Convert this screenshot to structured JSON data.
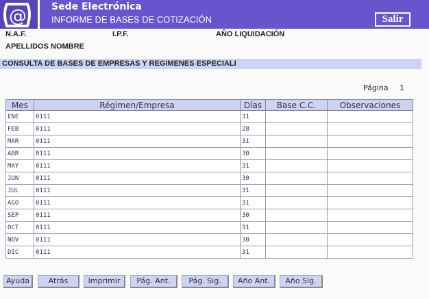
{
  "header": {
    "title": "Sede Electrónica",
    "subtitle": "INFORME DE BASES DE COTIZACIÓN",
    "exit_label": "Salir",
    "logo_icon": "at-sign-logo"
  },
  "fields": {
    "naf": "N.A.F.",
    "ipf": "I.P.F.",
    "year": "AÑO LIQUIDACIÓN",
    "name": "APELLIDOS NOMBRE"
  },
  "section_title": "CONSULTA DE BASES DE EMPRESAS Y REGIMENES ESPECIALI",
  "page": {
    "label": "Página",
    "number": "1"
  },
  "table": {
    "columns": [
      "Mes",
      "Régimen/Empresa",
      "Días",
      "Base C.C.",
      "Observaciones"
    ],
    "rows": [
      [
        "ENE",
        "0111",
        "31",
        "",
        ""
      ],
      [
        "FEB",
        "0111",
        "28",
        "",
        ""
      ],
      [
        "MAR",
        "0111",
        "31",
        "",
        ""
      ],
      [
        "ABR",
        "0111",
        "30",
        "",
        ""
      ],
      [
        "MAY",
        "0111",
        "31",
        "",
        ""
      ],
      [
        "JUN",
        "0111",
        "30",
        "",
        ""
      ],
      [
        "JUL",
        "0111",
        "31",
        "",
        ""
      ],
      [
        "AGO",
        "0111",
        "31",
        "",
        ""
      ],
      [
        "SEP",
        "0111",
        "30",
        "",
        ""
      ],
      [
        "OCT",
        "0111",
        "31",
        "",
        ""
      ],
      [
        "NOV",
        "0111",
        "30",
        "",
        ""
      ],
      [
        "DIC",
        "0111",
        "31",
        "",
        ""
      ]
    ]
  },
  "buttons": [
    "Ayuda",
    "Atrás",
    "Imprimir",
    "Pág. Ant.",
    "Pág. Sig.",
    "Año Ant.",
    "Año Sig."
  ]
}
